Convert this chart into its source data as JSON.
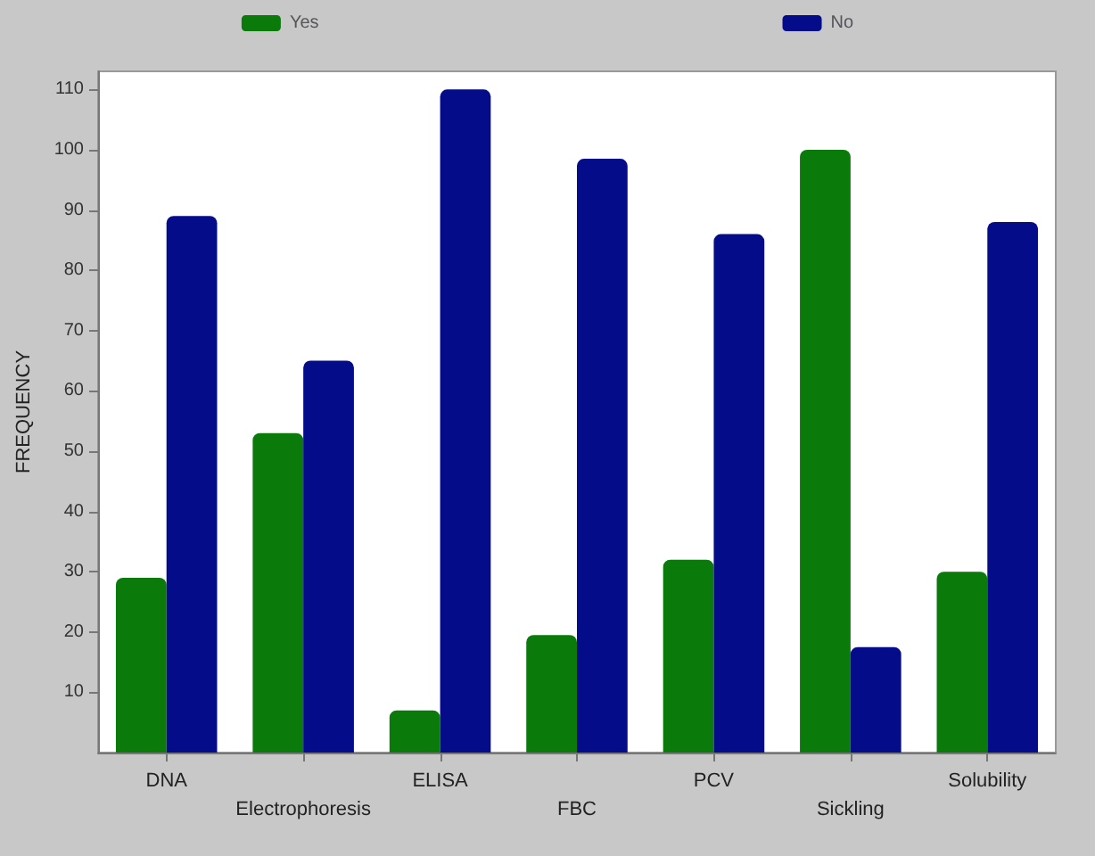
{
  "chart_data": {
    "type": "bar",
    "ylabel": "FREQUENCY",
    "categories": [
      "DNA",
      "Electrophoresis",
      "ELISA",
      "FBC",
      "PCV",
      "Sickling",
      "Solubility"
    ],
    "series": [
      {
        "name": "Yes",
        "color": "#0a7a0a",
        "values": [
          29,
          53,
          7,
          19.5,
          32,
          100,
          30
        ]
      },
      {
        "name": "No",
        "color": "#050c8a",
        "values": [
          89,
          65,
          110,
          98.5,
          86,
          17.5,
          88
        ]
      }
    ],
    "ylim": [
      0,
      113
    ],
    "yticks": [
      10,
      20,
      30,
      40,
      50,
      60,
      70,
      80,
      90,
      100,
      110
    ],
    "grid": false,
    "legend": "top"
  }
}
